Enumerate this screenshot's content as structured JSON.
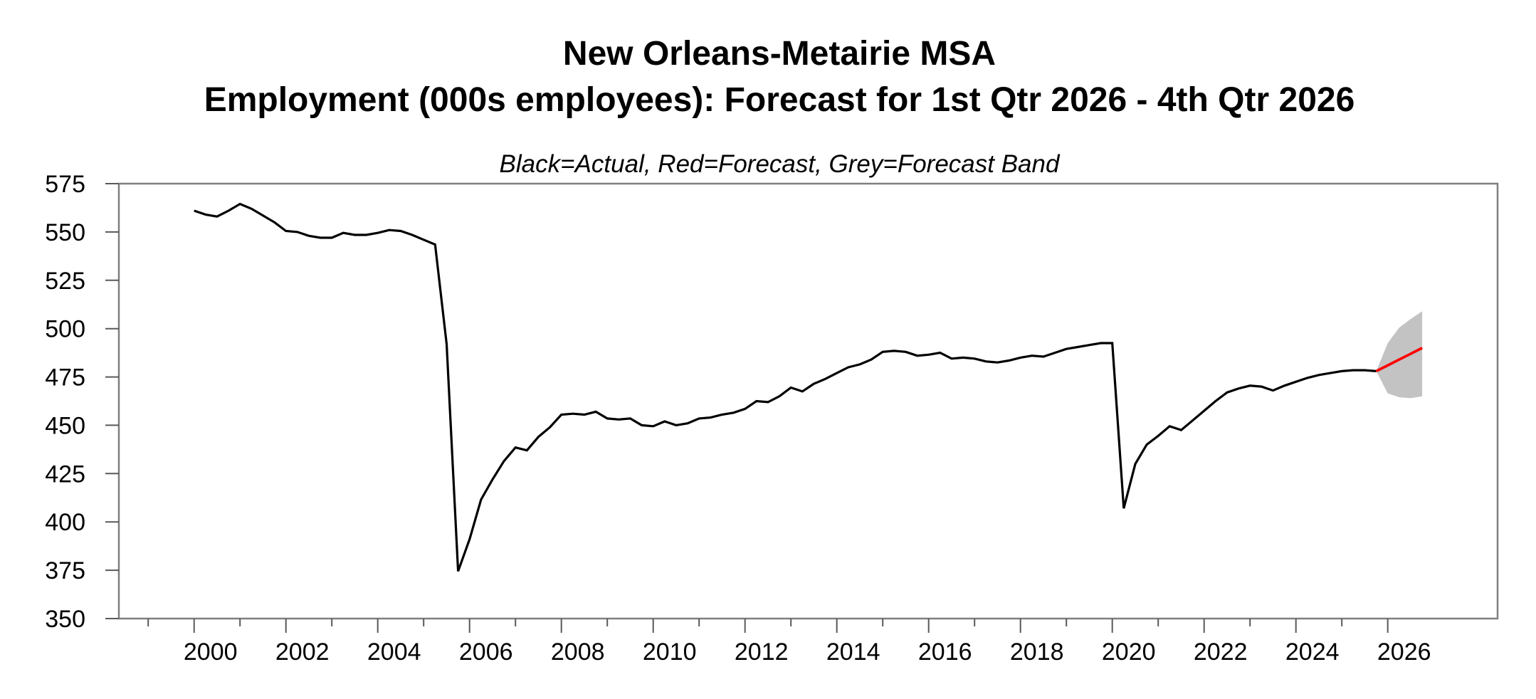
{
  "chart_data": {
    "type": "line",
    "title": "New Orleans-Metairie MSA",
    "subtitle": "Employment (000s employees): Forecast for 1st Qtr 2026 - 4th Qtr 2026",
    "note": "Black=Actual, Red=Forecast, Grey=Forecast Band",
    "ylabel": "",
    "xlabel": "",
    "ylim": [
      350,
      575
    ],
    "yticks": [
      350,
      375,
      400,
      425,
      450,
      475,
      500,
      525,
      550,
      575
    ],
    "x_major_years": [
      2000,
      2002,
      2004,
      2006,
      2008,
      2010,
      2012,
      2014,
      2016,
      2018,
      2020,
      2022,
      2024,
      2026
    ],
    "x_minor_years": [
      1999,
      2001,
      2003,
      2005,
      2007,
      2009,
      2011,
      2013,
      2015,
      2017,
      2019,
      2021,
      2023,
      2025
    ],
    "x_tick_labels": [
      "2000",
      "2002",
      "2004",
      "2006",
      "2008",
      "2010",
      "2012",
      "2014",
      "2016",
      "2018",
      "2020",
      "2022",
      "2024",
      "2026"
    ],
    "grid": "off",
    "legend_position": "none",
    "series": [
      {
        "name": "Actual",
        "color": "#000000",
        "x_start": 2000.0,
        "x_step": 0.25,
        "values": [
          561,
          559,
          558,
          561,
          564.5,
          562,
          558.5,
          555,
          550.5,
          550,
          548,
          547,
          547,
          549.5,
          548.5,
          548.5,
          549.5,
          551,
          550.5,
          548.5,
          546,
          543.5,
          492,
          374.5,
          391,
          411.5,
          422,
          431.5,
          438.5,
          437,
          444,
          449,
          455.5,
          456,
          455.5,
          457,
          453.5,
          453,
          453.5,
          450,
          449.5,
          452,
          450,
          451,
          453.5,
          454,
          455.5,
          456.5,
          458.5,
          462.5,
          462,
          465,
          469.5,
          467.5,
          471.5,
          474,
          477,
          480,
          481.5,
          484,
          488,
          488.5,
          488,
          486,
          486.5,
          487.5,
          484.5,
          485,
          484.5,
          483,
          482.5,
          483.5,
          485,
          486,
          485.5,
          487.5,
          489.5,
          490.5,
          491.5,
          492.5,
          492.5,
          407,
          430,
          440,
          444.5,
          449.5,
          447.5,
          452.5,
          457.5,
          462.5,
          467,
          469,
          470.5,
          470,
          468,
          470.5,
          472.5,
          474.5,
          476,
          477,
          478,
          478.5,
          478.5,
          478
        ]
      },
      {
        "name": "Forecast",
        "color": "#ff0000",
        "x_start": 2025.75,
        "x_step": 0.25,
        "values": [
          478,
          481,
          484,
          487,
          490
        ]
      }
    ],
    "band": {
      "name": "Forecast Band",
      "color": "#c3c3c3",
      "x_start": 2025.75,
      "x_step": 0.25,
      "upper": [
        478,
        492.5,
        500.5,
        505,
        509
      ],
      "lower": [
        478,
        466.5,
        464.5,
        464,
        465
      ]
    }
  },
  "colors": {
    "background": "#ffffff",
    "plot_border": "#7f7f7f",
    "tick": "#595959",
    "text": "#000000",
    "actual_line": "#000000",
    "forecast_line": "#ff0000",
    "forecast_band": "#c3c3c3"
  }
}
